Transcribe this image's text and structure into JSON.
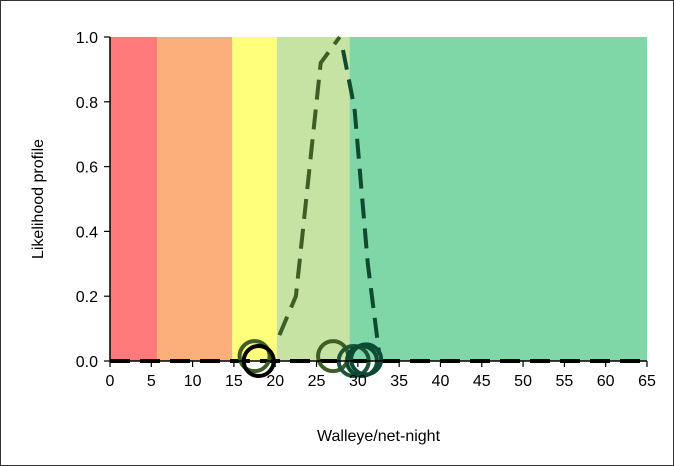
{
  "chart_data": {
    "type": "line",
    "title": "",
    "xlabel": "Walleye/net-night",
    "ylabel": "Likelihood profile",
    "xlim": [
      0,
      65
    ],
    "ylim": [
      0,
      1
    ],
    "xticks": [
      0,
      5,
      10,
      15,
      20,
      25,
      30,
      35,
      40,
      45,
      50,
      55,
      60,
      65
    ],
    "yticks": [
      "0.0",
      "0.2",
      "0.4",
      "0.6",
      "0.8",
      "1.0"
    ],
    "grid": false,
    "legend": "none",
    "bands": [
      {
        "from": 0,
        "to": 5.7,
        "color": "#ff7b7b"
      },
      {
        "from": 5.7,
        "to": 14.8,
        "color": "#fdaf7b"
      },
      {
        "from": 14.8,
        "to": 20.2,
        "color": "#ffff7b"
      },
      {
        "from": 20.2,
        "to": 29,
        "color": "#c6e3a4"
      },
      {
        "from": 29,
        "to": 65,
        "color": "#7fd6a6"
      }
    ],
    "series": [
      {
        "style": "dashed",
        "color": "#3d5e24",
        "x": [
          20.5,
          22.5,
          25.5,
          27.8
        ],
        "y": [
          0.08,
          0.2,
          0.92,
          1.0
        ]
      },
      {
        "style": "dashed",
        "color": "#0e4a30",
        "x": [
          28.2,
          29.6,
          31.2,
          32.6
        ],
        "y": [
          0.96,
          0.78,
          0.3,
          0.02
        ]
      },
      {
        "style": "dashed",
        "color": "#000000",
        "x": [
          0,
          18,
          32,
          65
        ],
        "y": [
          0.0,
          0.0,
          0.0,
          0.0
        ]
      }
    ],
    "markers": [
      {
        "x": 17.5,
        "y": 0.015,
        "color": "#3d5e24"
      },
      {
        "x": 18,
        "y": 0.0,
        "color": "#000000"
      },
      {
        "x": 27,
        "y": 0.015,
        "color": "#3d5e24"
      },
      {
        "x": 29.5,
        "y": 0.0,
        "color": "#1e5438"
      },
      {
        "x": 30.5,
        "y": 0.0,
        "color": "#0e4a30"
      },
      {
        "x": 31,
        "y": 0.005,
        "color": "#0a4a36"
      }
    ]
  }
}
